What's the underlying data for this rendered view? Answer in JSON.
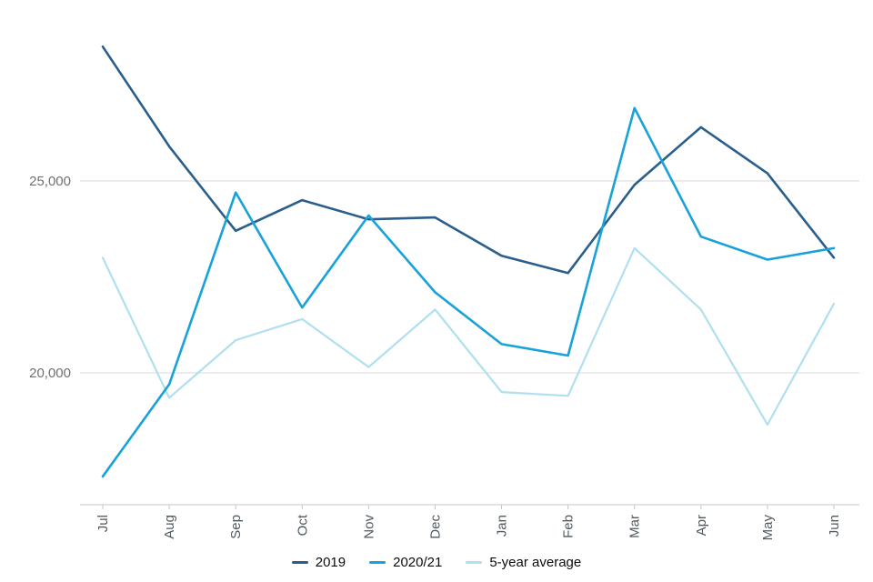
{
  "chart_data": {
    "type": "line",
    "title": "",
    "xlabel": "",
    "ylabel": "",
    "x_categories": [
      "Jul",
      "Aug",
      "Sep",
      "Oct",
      "Nov",
      "Dec",
      "Jan",
      "Feb",
      "Mar",
      "Apr",
      "May",
      "Jun"
    ],
    "series": [
      {
        "name": "2019",
        "color": "#2a5e8c",
        "values": [
          28500,
          25900,
          23700,
          24500,
          24000,
          24050,
          23050,
          22600,
          24900,
          26400,
          25200,
          23000
        ]
      },
      {
        "name": "2020/21",
        "color": "#17a2d9",
        "values": [
          17300,
          19700,
          24700,
          21700,
          24100,
          22100,
          20750,
          20450,
          26900,
          23550,
          22950,
          23250
        ]
      },
      {
        "name": "5-year average",
        "color": "#b0dff0",
        "values": [
          23000,
          19350,
          20850,
          21400,
          20150,
          21650,
          19500,
          19400,
          23250,
          21650,
          18650,
          21800
        ]
      }
    ],
    "y_ticks": [
      {
        "value": 25000,
        "label": "25,000"
      },
      {
        "value": 20000,
        "label": "20,000"
      }
    ],
    "ylim": [
      16500,
      29500
    ],
    "grid": "horizontal",
    "legend_position": "bottom-center"
  }
}
